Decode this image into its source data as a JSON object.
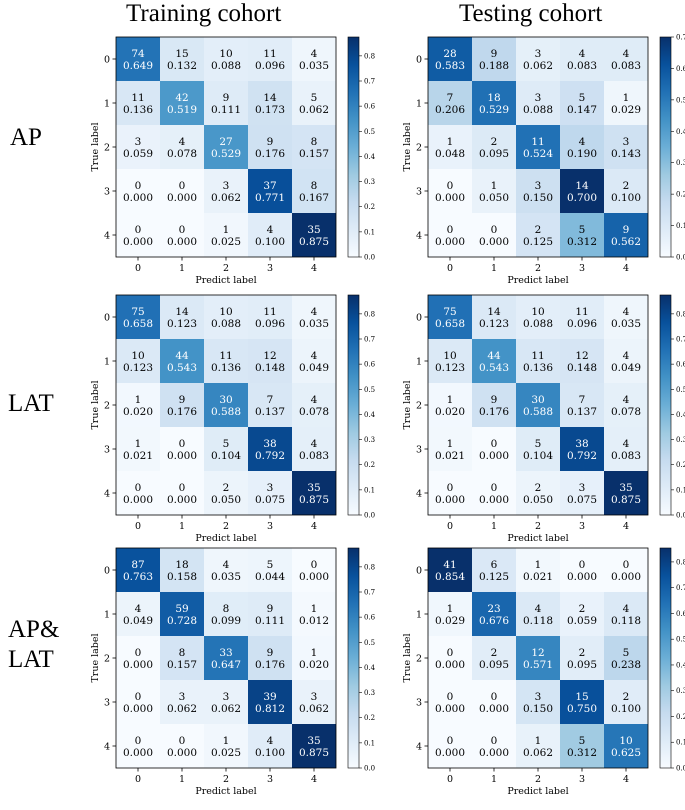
{
  "column_titles": [
    "Training cohort",
    "Testing cohort"
  ],
  "row_titles": [
    "AP",
    "LAT",
    "AP&\nLAT"
  ],
  "chart_data": [
    {
      "type": "heatmap",
      "title": "",
      "cohort": "Training cohort",
      "view": "AP",
      "xlabel": "Predict label",
      "ylabel": "True label",
      "x_ticks": [
        "0",
        "1",
        "2",
        "3",
        "4"
      ],
      "y_ticks": [
        "0",
        "1",
        "2",
        "3",
        "4"
      ],
      "counts": [
        [
          74,
          15,
          10,
          11,
          4
        ],
        [
          11,
          42,
          9,
          14,
          5
        ],
        [
          3,
          4,
          27,
          9,
          8
        ],
        [
          0,
          0,
          3,
          37,
          8
        ],
        [
          0,
          0,
          1,
          4,
          35
        ]
      ],
      "rates": [
        [
          "0.649",
          "0.132",
          "0.088",
          "0.096",
          "0.035"
        ],
        [
          "0.136",
          "0.519",
          "0.111",
          "0.173",
          "0.062"
        ],
        [
          "0.059",
          "0.078",
          "0.529",
          "0.176",
          "0.157"
        ],
        [
          "0.000",
          "0.000",
          "0.062",
          "0.771",
          "0.167"
        ],
        [
          "0.000",
          "0.000",
          "0.025",
          "0.100",
          "0.875"
        ]
      ],
      "colorbar": {
        "vmin": 0,
        "vmax": 0.875,
        "ticks": [
          "0.0",
          "0.1",
          "0.2",
          "0.3",
          "0.4",
          "0.5",
          "0.6",
          "0.7",
          "0.8"
        ]
      }
    },
    {
      "type": "heatmap",
      "title": "",
      "cohort": "Testing cohort",
      "view": "AP",
      "xlabel": "Predict label",
      "ylabel": "True label",
      "x_ticks": [
        "0",
        "1",
        "2",
        "3",
        "4"
      ],
      "y_ticks": [
        "0",
        "1",
        "2",
        "3",
        "4"
      ],
      "counts": [
        [
          28,
          9,
          3,
          4,
          4
        ],
        [
          7,
          18,
          3,
          5,
          1
        ],
        [
          1,
          2,
          11,
          4,
          3
        ],
        [
          0,
          1,
          3,
          14,
          2
        ],
        [
          0,
          0,
          2,
          5,
          9
        ]
      ],
      "rates": [
        [
          "0.583",
          "0.188",
          "0.062",
          "0.083",
          "0.083"
        ],
        [
          "0.206",
          "0.529",
          "0.088",
          "0.147",
          "0.029"
        ],
        [
          "0.048",
          "0.095",
          "0.524",
          "0.190",
          "0.143"
        ],
        [
          "0.000",
          "0.050",
          "0.150",
          "0.700",
          "0.100"
        ],
        [
          "0.000",
          "0.000",
          "0.125",
          "0.312",
          "0.562"
        ]
      ],
      "colorbar": {
        "vmin": 0,
        "vmax": 0.7,
        "ticks": [
          "0.0",
          "0.1",
          "0.2",
          "0.3",
          "0.4",
          "0.5",
          "0.6",
          "0.7"
        ]
      }
    },
    {
      "type": "heatmap",
      "title": "",
      "cohort": "Training cohort",
      "view": "LAT",
      "xlabel": "Predict label",
      "ylabel": "True label",
      "x_ticks": [
        "0",
        "1",
        "2",
        "3",
        "4"
      ],
      "y_ticks": [
        "0",
        "1",
        "2",
        "3",
        "4"
      ],
      "counts": [
        [
          75,
          14,
          10,
          11,
          4
        ],
        [
          10,
          44,
          11,
          12,
          4
        ],
        [
          1,
          9,
          30,
          7,
          4
        ],
        [
          1,
          0,
          5,
          38,
          4
        ],
        [
          0,
          0,
          2,
          3,
          35
        ]
      ],
      "rates": [
        [
          "0.658",
          "0.123",
          "0.088",
          "0.096",
          "0.035"
        ],
        [
          "0.123",
          "0.543",
          "0.136",
          "0.148",
          "0.049"
        ],
        [
          "0.020",
          "0.176",
          "0.588",
          "0.137",
          "0.078"
        ],
        [
          "0.021",
          "0.000",
          "0.104",
          "0.792",
          "0.083"
        ],
        [
          "0.000",
          "0.000",
          "0.050",
          "0.075",
          "0.875"
        ]
      ],
      "colorbar": {
        "vmin": 0,
        "vmax": 0.875,
        "ticks": [
          "0.0",
          "0.1",
          "0.2",
          "0.3",
          "0.4",
          "0.5",
          "0.6",
          "0.7",
          "0.8"
        ]
      }
    },
    {
      "type": "heatmap",
      "title": "",
      "cohort": "Testing cohort",
      "view": "LAT",
      "xlabel": "Predict label",
      "ylabel": "True label",
      "x_ticks": [
        "0",
        "1",
        "2",
        "3",
        "4"
      ],
      "y_ticks": [
        "0",
        "1",
        "2",
        "3",
        "4"
      ],
      "counts": [
        [
          75,
          14,
          10,
          11,
          4
        ],
        [
          10,
          44,
          11,
          12,
          4
        ],
        [
          1,
          9,
          30,
          7,
          4
        ],
        [
          1,
          0,
          5,
          38,
          4
        ],
        [
          0,
          0,
          2,
          3,
          35
        ]
      ],
      "rates": [
        [
          "0.658",
          "0.123",
          "0.088",
          "0.096",
          "0.035"
        ],
        [
          "0.123",
          "0.543",
          "0.136",
          "0.148",
          "0.049"
        ],
        [
          "0.020",
          "0.176",
          "0.588",
          "0.137",
          "0.078"
        ],
        [
          "0.021",
          "0.000",
          "0.104",
          "0.792",
          "0.083"
        ],
        [
          "0.000",
          "0.000",
          "0.050",
          "0.075",
          "0.875"
        ]
      ],
      "colorbar": {
        "vmin": 0,
        "vmax": 0.875,
        "ticks": [
          "0.0",
          "0.1",
          "0.2",
          "0.3",
          "0.4",
          "0.5",
          "0.6",
          "0.7",
          "0.8"
        ]
      }
    },
    {
      "type": "heatmap",
      "title": "",
      "cohort": "Training cohort",
      "view": "AP&LAT",
      "xlabel": "Predict label",
      "ylabel": "True label",
      "x_ticks": [
        "0",
        "1",
        "2",
        "3",
        "4"
      ],
      "y_ticks": [
        "0",
        "1",
        "2",
        "3",
        "4"
      ],
      "counts": [
        [
          87,
          18,
          4,
          5,
          0
        ],
        [
          4,
          59,
          8,
          9,
          1
        ],
        [
          0,
          8,
          33,
          9,
          1
        ],
        [
          0,
          3,
          3,
          39,
          3
        ],
        [
          0,
          0,
          1,
          4,
          35
        ]
      ],
      "rates": [
        [
          "0.763",
          "0.158",
          "0.035",
          "0.044",
          "0.000"
        ],
        [
          "0.049",
          "0.728",
          "0.099",
          "0.111",
          "0.012"
        ],
        [
          "0.000",
          "0.157",
          "0.647",
          "0.176",
          "0.020"
        ],
        [
          "0.000",
          "0.062",
          "0.062",
          "0.812",
          "0.062"
        ],
        [
          "0.000",
          "0.000",
          "0.025",
          "0.100",
          "0.875"
        ]
      ],
      "colorbar": {
        "vmin": 0,
        "vmax": 0.875,
        "ticks": [
          "0.0",
          "0.1",
          "0.2",
          "0.3",
          "0.4",
          "0.5",
          "0.6",
          "0.7",
          "0.8"
        ]
      }
    },
    {
      "type": "heatmap",
      "title": "",
      "cohort": "Testing cohort",
      "view": "AP&LAT",
      "xlabel": "Predict label",
      "ylabel": "True label",
      "x_ticks": [
        "0",
        "1",
        "2",
        "3",
        "4"
      ],
      "y_ticks": [
        "0",
        "1",
        "2",
        "3",
        "4"
      ],
      "counts": [
        [
          41,
          6,
          1,
          0,
          0
        ],
        [
          1,
          23,
          4,
          2,
          4
        ],
        [
          0,
          2,
          12,
          2,
          5
        ],
        [
          0,
          0,
          3,
          15,
          2
        ],
        [
          0,
          0,
          1,
          5,
          10
        ]
      ],
      "rates": [
        [
          "0.854",
          "0.125",
          "0.021",
          "0.000",
          "0.000"
        ],
        [
          "0.029",
          "0.676",
          "0.118",
          "0.059",
          "0.118"
        ],
        [
          "0.000",
          "0.095",
          "0.571",
          "0.095",
          "0.238"
        ],
        [
          "0.000",
          "0.000",
          "0.150",
          "0.750",
          "0.100"
        ],
        [
          "0.000",
          "0.000",
          "0.062",
          "0.312",
          "0.625"
        ]
      ],
      "colorbar": {
        "vmin": 0,
        "vmax": 0.854,
        "ticks": [
          "0.0",
          "0.1",
          "0.2",
          "0.3",
          "0.4",
          "0.5",
          "0.6",
          "0.7",
          "0.8"
        ]
      }
    }
  ]
}
